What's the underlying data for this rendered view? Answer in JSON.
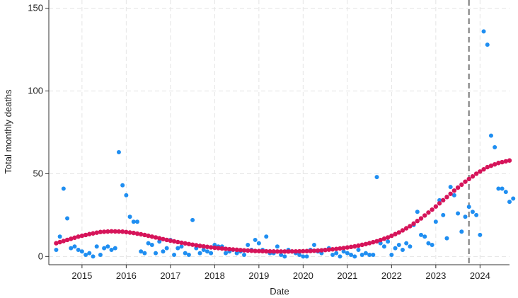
{
  "chart_data": {
    "type": "scatter",
    "xlabel": "Date",
    "ylabel": "Total monthly deaths",
    "xlim": [
      "2014-04",
      "2024-09"
    ],
    "ylim": [
      -5,
      155
    ],
    "x_ticks": [
      "2015",
      "2016",
      "2017",
      "2018",
      "2019",
      "2020",
      "2021",
      "2022",
      "2023",
      "2024"
    ],
    "y_ticks": [
      0,
      50,
      100,
      150
    ],
    "grid": true,
    "colors": {
      "points": "#1f8ef1",
      "fit": "#d6145a",
      "reference": "#777777"
    },
    "reference_line": {
      "x": "2023-10",
      "style": "dashed"
    },
    "series": [
      {
        "type": "scatter",
        "points": [
          [
            "2014-06",
            4
          ],
          [
            "2014-07",
            12
          ],
          [
            "2014-08",
            41
          ],
          [
            "2014-09",
            23
          ],
          [
            "2014-10",
            5
          ],
          [
            "2014-11",
            6
          ],
          [
            "2014-12",
            4
          ],
          [
            "2015-01",
            3
          ],
          [
            "2015-02",
            1
          ],
          [
            "2015-03",
            2
          ],
          [
            "2015-04",
            0
          ],
          [
            "2015-05",
            6
          ],
          [
            "2015-06",
            1
          ],
          [
            "2015-07",
            5
          ],
          [
            "2015-08",
            6
          ],
          [
            "2015-09",
            4
          ],
          [
            "2015-10",
            5
          ],
          [
            "2015-11",
            63
          ],
          [
            "2015-12",
            43
          ],
          [
            "2016-01",
            37
          ],
          [
            "2016-02",
            24
          ],
          [
            "2016-03",
            21
          ],
          [
            "2016-04",
            21
          ],
          [
            "2016-05",
            3
          ],
          [
            "2016-06",
            2
          ],
          [
            "2016-07",
            8
          ],
          [
            "2016-08",
            7
          ],
          [
            "2016-09",
            2
          ],
          [
            "2016-10",
            9
          ],
          [
            "2016-11",
            3
          ],
          [
            "2016-12",
            5
          ],
          [
            "2017-01",
            10
          ],
          [
            "2017-02",
            1
          ],
          [
            "2017-03",
            5
          ],
          [
            "2017-04",
            6
          ],
          [
            "2017-05",
            2
          ],
          [
            "2017-06",
            1
          ],
          [
            "2017-07",
            22
          ],
          [
            "2017-08",
            5
          ],
          [
            "2017-09",
            2
          ],
          [
            "2017-10",
            4
          ],
          [
            "2017-11",
            3
          ],
          [
            "2017-12",
            2
          ],
          [
            "2018-01",
            7
          ],
          [
            "2018-02",
            6
          ],
          [
            "2018-03",
            6
          ],
          [
            "2018-04",
            2
          ],
          [
            "2018-05",
            3
          ],
          [
            "2018-06",
            4
          ],
          [
            "2018-07",
            2
          ],
          [
            "2018-08",
            3
          ],
          [
            "2018-09",
            1
          ],
          [
            "2018-10",
            7
          ],
          [
            "2018-11",
            4
          ],
          [
            "2018-12",
            10
          ],
          [
            "2019-01",
            8
          ],
          [
            "2019-02",
            4
          ],
          [
            "2019-03",
            12
          ],
          [
            "2019-04",
            2
          ],
          [
            "2019-05",
            2
          ],
          [
            "2019-06",
            6
          ],
          [
            "2019-07",
            1
          ],
          [
            "2019-08",
            0
          ],
          [
            "2019-09",
            4
          ],
          [
            "2019-10",
            3
          ],
          [
            "2019-11",
            2
          ],
          [
            "2019-12",
            1
          ],
          [
            "2020-01",
            0
          ],
          [
            "2020-02",
            0
          ],
          [
            "2020-03",
            4
          ],
          [
            "2020-04",
            7
          ],
          [
            "2020-05",
            3
          ],
          [
            "2020-06",
            2
          ],
          [
            "2020-07",
            4
          ],
          [
            "2020-08",
            5
          ],
          [
            "2020-09",
            1
          ],
          [
            "2020-10",
            2
          ],
          [
            "2020-11",
            0
          ],
          [
            "2020-12",
            3
          ],
          [
            "2021-01",
            2
          ],
          [
            "2021-02",
            1
          ],
          [
            "2021-03",
            0
          ],
          [
            "2021-04",
            4
          ],
          [
            "2021-05",
            1
          ],
          [
            "2021-06",
            2
          ],
          [
            "2021-07",
            1
          ],
          [
            "2021-08",
            1
          ],
          [
            "2021-09",
            48
          ],
          [
            "2021-10",
            8
          ],
          [
            "2021-11",
            6
          ],
          [
            "2021-12",
            9
          ],
          [
            "2022-01",
            1
          ],
          [
            "2022-02",
            5
          ],
          [
            "2022-03",
            7
          ],
          [
            "2022-04",
            4
          ],
          [
            "2022-05",
            8
          ],
          [
            "2022-06",
            6
          ],
          [
            "2022-07",
            19
          ],
          [
            "2022-08",
            27
          ],
          [
            "2022-09",
            13
          ],
          [
            "2022-10",
            12
          ],
          [
            "2022-11",
            8
          ],
          [
            "2022-12",
            7
          ],
          [
            "2023-01",
            21
          ],
          [
            "2023-02",
            34
          ],
          [
            "2023-03",
            25
          ],
          [
            "2023-04",
            11
          ],
          [
            "2023-05",
            42
          ],
          [
            "2023-06",
            37
          ],
          [
            "2023-07",
            26
          ],
          [
            "2023-08",
            15
          ],
          [
            "2023-09",
            24
          ],
          [
            "2023-10",
            30
          ],
          [
            "2023-11",
            27
          ],
          [
            "2023-12",
            25
          ],
          [
            "2024-01",
            13
          ],
          [
            "2024-02",
            136
          ],
          [
            "2024-03",
            128
          ],
          [
            "2024-04",
            73
          ],
          [
            "2024-05",
            66
          ],
          [
            "2024-06",
            41
          ],
          [
            "2024-07",
            41
          ],
          [
            "2024-08",
            39
          ],
          [
            "2024-09",
            33
          ],
          [
            "2024-10",
            35
          ]
        ]
      },
      {
        "type": "line",
        "points": [
          [
            "2014-06",
            8
          ],
          [
            "2014-09",
            10
          ],
          [
            "2014-12",
            12
          ],
          [
            "2015-03",
            13.5
          ],
          [
            "2015-06",
            14.8
          ],
          [
            "2015-09",
            15.2
          ],
          [
            "2015-12",
            15
          ],
          [
            "2016-03",
            14.2
          ],
          [
            "2016-06",
            13
          ],
          [
            "2016-09",
            11.5
          ],
          [
            "2016-12",
            10
          ],
          [
            "2017-03",
            8.7
          ],
          [
            "2017-06",
            7.5
          ],
          [
            "2017-09",
            6.4
          ],
          [
            "2017-12",
            5.5
          ],
          [
            "2018-03",
            4.8
          ],
          [
            "2018-06",
            4.2
          ],
          [
            "2018-09",
            3.7
          ],
          [
            "2018-12",
            3.3
          ],
          [
            "2019-03",
            3.1
          ],
          [
            "2019-06",
            3
          ],
          [
            "2019-09",
            3
          ],
          [
            "2019-12",
            3.1
          ],
          [
            "2020-03",
            3.3
          ],
          [
            "2020-06",
            3.7
          ],
          [
            "2020-09",
            4.3
          ],
          [
            "2020-12",
            5.1
          ],
          [
            "2021-03",
            6.1
          ],
          [
            "2021-06",
            7.5
          ],
          [
            "2021-09",
            9.2
          ],
          [
            "2021-12",
            11.5
          ],
          [
            "2022-03",
            14.5
          ],
          [
            "2022-06",
            18.3
          ],
          [
            "2022-09",
            23
          ],
          [
            "2022-12",
            28.3
          ],
          [
            "2023-03",
            34
          ],
          [
            "2023-06",
            39.8
          ],
          [
            "2023-09",
            45.2
          ],
          [
            "2023-12",
            50
          ],
          [
            "2024-03",
            54
          ],
          [
            "2024-06",
            56.5
          ],
          [
            "2024-09",
            58
          ]
        ]
      }
    ]
  }
}
